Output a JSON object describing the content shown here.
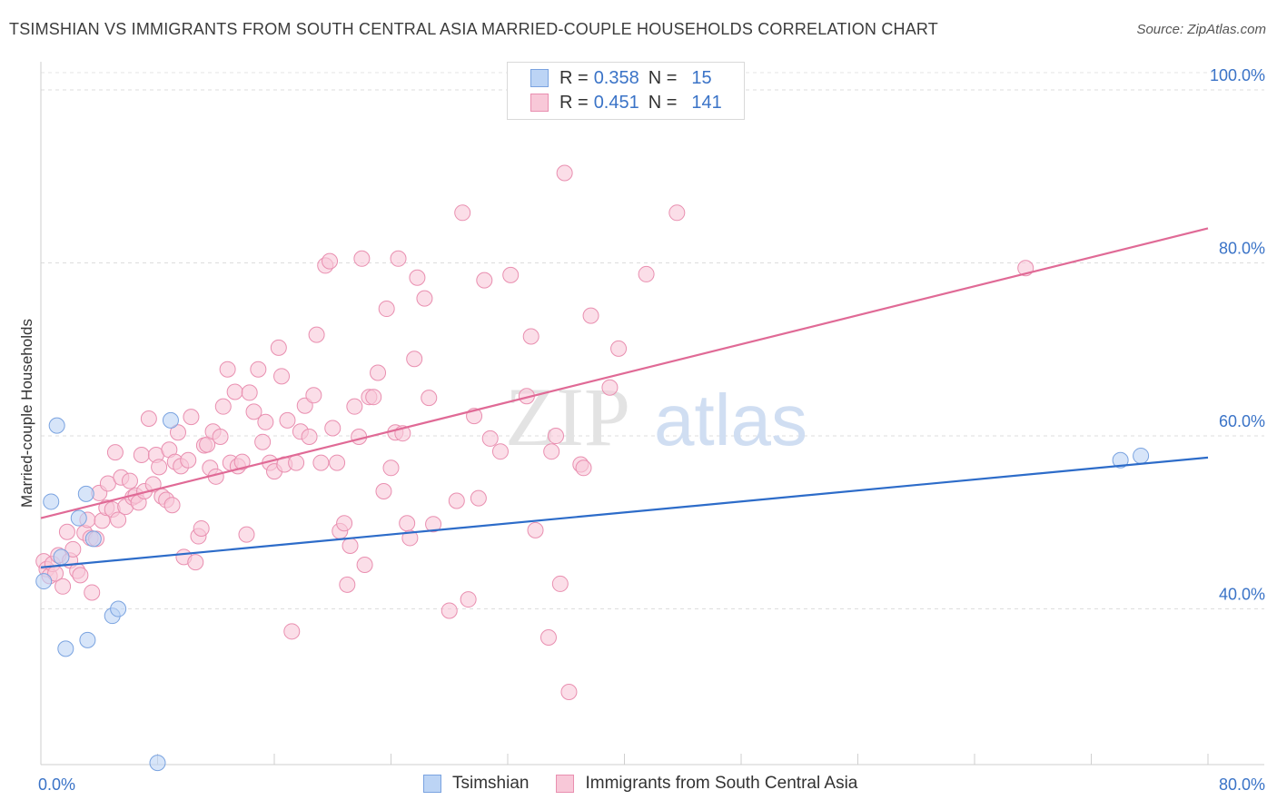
{
  "title": "TSIMSHIAN VS IMMIGRANTS FROM SOUTH CENTRAL ASIA MARRIED-COUPLE HOUSEHOLDS CORRELATION CHART",
  "source": "Source: ZipAtlas.com",
  "watermark": {
    "zip": "ZIP",
    "atlas": "atlas"
  },
  "legend": {
    "rows": [
      {
        "r_label": "R =",
        "r_value": "0.358",
        "n_label": "N =",
        "n_value": "15",
        "fill": "#bcd4f5",
        "stroke": "#7aa3e0"
      },
      {
        "r_label": "R =",
        "r_value": "0.451",
        "n_label": "N =",
        "n_value": "141",
        "fill": "#f8c8d8",
        "stroke": "#e98fb0"
      }
    ]
  },
  "bottom_legend": [
    {
      "label": "Tsimshian",
      "fill": "#bcd4f5",
      "stroke": "#7aa3e0"
    },
    {
      "label": "Immigrants from South Central Asia",
      "fill": "#f8c8d8",
      "stroke": "#e98fb0"
    }
  ],
  "chart_data": {
    "type": "scatter",
    "title": "TSIMSHIAN VS IMMIGRANTS FROM SOUTH CENTRAL ASIA MARRIED-COUPLE HOUSEHOLDS CORRELATION CHART",
    "xlabel": "",
    "ylabel": "Married-couple Households",
    "xlim": [
      0,
      80
    ],
    "ylim": [
      22,
      102
    ],
    "x_tick_labels": [
      {
        "value": 0,
        "label": "0.0%"
      },
      {
        "value": 80,
        "label": "80.0%"
      }
    ],
    "y_tick_labels": [
      {
        "value": 40,
        "label": "40.0%"
      },
      {
        "value": 60,
        "label": "60.0%"
      },
      {
        "value": 80,
        "label": "80.0%"
      },
      {
        "value": 100,
        "label": "100.0%"
      }
    ],
    "series": [
      {
        "name": "Tsimshian",
        "color": "#7aa3e0",
        "fill": "#bcd4f5",
        "line_color": "#2d6cc9",
        "trend": {
          "x0": 0,
          "y0": 44.8,
          "x1": 80,
          "y1": 57.5
        },
        "points": [
          [
            0.2,
            43.2
          ],
          [
            0.7,
            52.4
          ],
          [
            1.1,
            61.2
          ],
          [
            1.4,
            46.0
          ],
          [
            1.7,
            35.4
          ],
          [
            2.6,
            50.5
          ],
          [
            3.1,
            53.3
          ],
          [
            3.2,
            36.4
          ],
          [
            3.6,
            48.1
          ],
          [
            4.9,
            39.2
          ],
          [
            5.3,
            40.0
          ],
          [
            8.0,
            22.2
          ],
          [
            8.9,
            61.8
          ],
          [
            74.0,
            57.2
          ],
          [
            75.4,
            57.7
          ]
        ]
      },
      {
        "name": "Immigrants from South Central Asia",
        "color": "#e98fb0",
        "fill": "#f8c8d8",
        "line_color": "#e06a96",
        "trend": {
          "x0": 0,
          "y0": 50.5,
          "x1": 80,
          "y1": 84.0
        },
        "points": [
          [
            0.2,
            45.5
          ],
          [
            0.4,
            44.6
          ],
          [
            0.6,
            43.8
          ],
          [
            0.8,
            45.2
          ],
          [
            1.0,
            44.1
          ],
          [
            1.2,
            46.2
          ],
          [
            1.5,
            42.6
          ],
          [
            1.8,
            48.9
          ],
          [
            2.0,
            45.6
          ],
          [
            2.2,
            46.9
          ],
          [
            2.5,
            44.4
          ],
          [
            2.7,
            43.9
          ],
          [
            3.0,
            48.8
          ],
          [
            3.2,
            50.3
          ],
          [
            3.4,
            48.2
          ],
          [
            3.5,
            41.9
          ],
          [
            3.8,
            48.1
          ],
          [
            4.0,
            53.4
          ],
          [
            4.2,
            50.2
          ],
          [
            4.5,
            51.7
          ],
          [
            4.6,
            54.5
          ],
          [
            4.9,
            51.5
          ],
          [
            5.1,
            58.1
          ],
          [
            5.3,
            50.3
          ],
          [
            5.5,
            55.2
          ],
          [
            5.8,
            51.8
          ],
          [
            6.1,
            54.8
          ],
          [
            6.3,
            52.9
          ],
          [
            6.5,
            53.1
          ],
          [
            6.7,
            52.3
          ],
          [
            6.9,
            57.8
          ],
          [
            7.1,
            53.6
          ],
          [
            7.4,
            62.0
          ],
          [
            7.7,
            54.4
          ],
          [
            7.9,
            57.8
          ],
          [
            8.1,
            56.4
          ],
          [
            8.3,
            53.0
          ],
          [
            8.6,
            52.6
          ],
          [
            8.8,
            58.4
          ],
          [
            9.0,
            52.0
          ],
          [
            9.2,
            57.0
          ],
          [
            9.4,
            60.4
          ],
          [
            9.6,
            56.5
          ],
          [
            9.8,
            46.0
          ],
          [
            10.1,
            57.2
          ],
          [
            10.3,
            62.2
          ],
          [
            10.6,
            45.4
          ],
          [
            10.8,
            48.4
          ],
          [
            11.0,
            49.3
          ],
          [
            11.2,
            58.9
          ],
          [
            11.4,
            59.0
          ],
          [
            11.6,
            56.3
          ],
          [
            11.8,
            60.5
          ],
          [
            12.0,
            55.3
          ],
          [
            12.3,
            59.9
          ],
          [
            12.5,
            63.4
          ],
          [
            12.8,
            67.7
          ],
          [
            13.0,
            56.9
          ],
          [
            13.3,
            65.1
          ],
          [
            13.5,
            56.5
          ],
          [
            13.8,
            57.0
          ],
          [
            14.1,
            48.6
          ],
          [
            14.3,
            65.0
          ],
          [
            14.6,
            62.8
          ],
          [
            14.9,
            67.7
          ],
          [
            15.2,
            59.3
          ],
          [
            15.4,
            61.6
          ],
          [
            15.7,
            56.9
          ],
          [
            16.0,
            55.9
          ],
          [
            16.3,
            70.2
          ],
          [
            16.5,
            66.9
          ],
          [
            16.7,
            56.7
          ],
          [
            16.9,
            61.8
          ],
          [
            17.2,
            37.4
          ],
          [
            17.5,
            56.9
          ],
          [
            17.8,
            60.5
          ],
          [
            18.1,
            63.5
          ],
          [
            18.4,
            59.9
          ],
          [
            18.7,
            64.7
          ],
          [
            18.9,
            71.7
          ],
          [
            19.2,
            56.9
          ],
          [
            19.5,
            79.7
          ],
          [
            19.8,
            80.2
          ],
          [
            20.0,
            60.9
          ],
          [
            20.3,
            56.9
          ],
          [
            20.5,
            49.0
          ],
          [
            20.8,
            49.9
          ],
          [
            21.0,
            42.8
          ],
          [
            21.2,
            47.3
          ],
          [
            21.5,
            63.4
          ],
          [
            21.8,
            59.9
          ],
          [
            22.0,
            80.5
          ],
          [
            22.2,
            45.1
          ],
          [
            22.5,
            64.5
          ],
          [
            22.8,
            64.5
          ],
          [
            23.1,
            67.3
          ],
          [
            23.5,
            53.6
          ],
          [
            23.7,
            74.7
          ],
          [
            24.0,
            56.3
          ],
          [
            24.3,
            60.4
          ],
          [
            24.5,
            80.5
          ],
          [
            24.8,
            60.3
          ],
          [
            25.1,
            49.9
          ],
          [
            25.3,
            48.2
          ],
          [
            25.6,
            68.9
          ],
          [
            25.8,
            78.3
          ],
          [
            26.3,
            75.9
          ],
          [
            26.6,
            64.4
          ],
          [
            26.9,
            49.8
          ],
          [
            28.0,
            39.8
          ],
          [
            28.5,
            52.5
          ],
          [
            28.9,
            85.8
          ],
          [
            29.3,
            41.1
          ],
          [
            29.7,
            62.3
          ],
          [
            30.0,
            52.8
          ],
          [
            30.4,
            78.0
          ],
          [
            30.8,
            59.7
          ],
          [
            31.5,
            58.2
          ],
          [
            32.2,
            78.6
          ],
          [
            33.3,
            64.6
          ],
          [
            33.6,
            71.5
          ],
          [
            33.9,
            49.1
          ],
          [
            35.0,
            58.2
          ],
          [
            35.3,
            60.0
          ],
          [
            35.6,
            42.9
          ],
          [
            35.9,
            90.4
          ],
          [
            36.2,
            30.4
          ],
          [
            34.8,
            36.7
          ],
          [
            37.0,
            56.7
          ],
          [
            37.2,
            56.3
          ],
          [
            37.7,
            73.9
          ],
          [
            39.0,
            65.6
          ],
          [
            39.6,
            70.1
          ],
          [
            41.5,
            78.7
          ],
          [
            43.6,
            85.8
          ],
          [
            67.5,
            79.4
          ]
        ]
      }
    ]
  }
}
